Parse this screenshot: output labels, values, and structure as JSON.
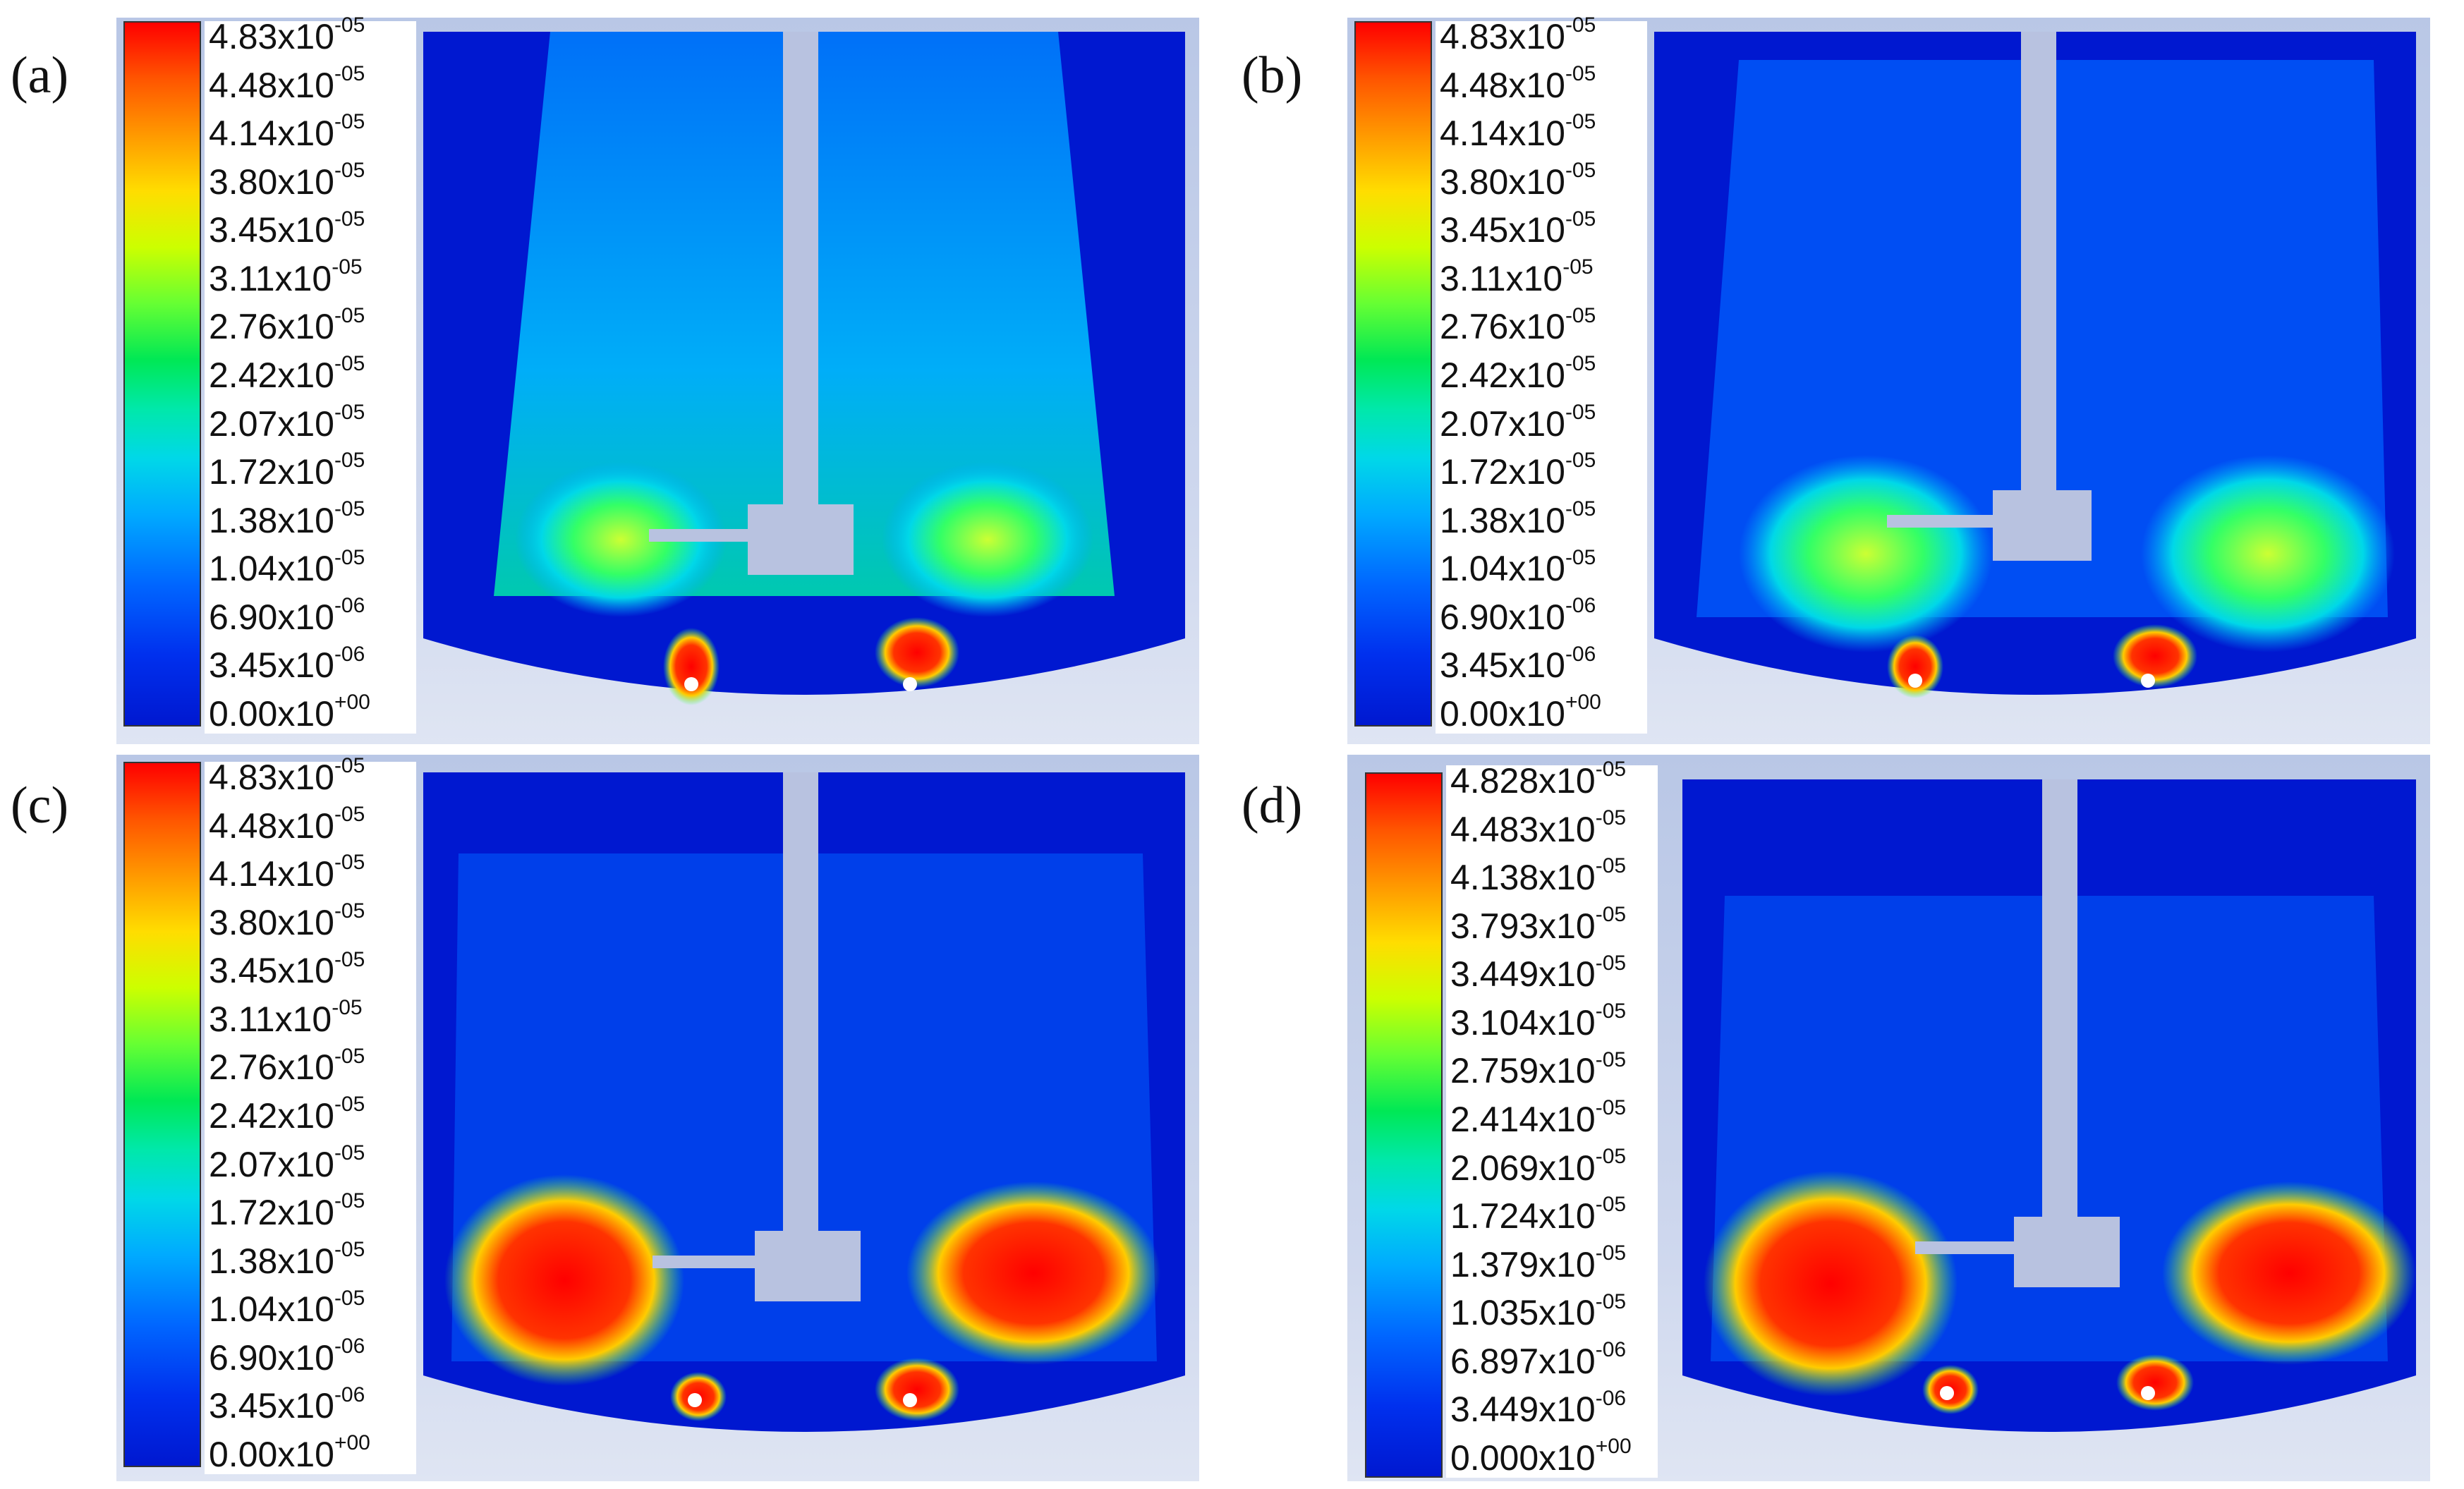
{
  "panels": [
    {
      "label": "(a)",
      "ticks": [
        [
          "4.83x10",
          "-05"
        ],
        [
          "4.48x10",
          "-05"
        ],
        [
          "4.14x10",
          "-05"
        ],
        [
          "3.80x10",
          "-05"
        ],
        [
          "3.45x10",
          "-05"
        ],
        [
          "3.11x10",
          "-05"
        ],
        [
          "2.76x10",
          "-05"
        ],
        [
          "2.42x10",
          "-05"
        ],
        [
          "2.07x10",
          "-05"
        ],
        [
          "1.72x10",
          "-05"
        ],
        [
          "1.38x10",
          "-05"
        ],
        [
          "1.04x10",
          "-05"
        ],
        [
          "6.90x10",
          "-06"
        ],
        [
          "3.45x10",
          "-06"
        ],
        [
          "0.00x10",
          "+00"
        ]
      ]
    },
    {
      "label": "(b)",
      "ticks": [
        [
          "4.83x10",
          "-05"
        ],
        [
          "4.48x10",
          "-05"
        ],
        [
          "4.14x10",
          "-05"
        ],
        [
          "3.80x10",
          "-05"
        ],
        [
          "3.45x10",
          "-05"
        ],
        [
          "3.11x10",
          "-05"
        ],
        [
          "2.76x10",
          "-05"
        ],
        [
          "2.42x10",
          "-05"
        ],
        [
          "2.07x10",
          "-05"
        ],
        [
          "1.72x10",
          "-05"
        ],
        [
          "1.38x10",
          "-05"
        ],
        [
          "1.04x10",
          "-05"
        ],
        [
          "6.90x10",
          "-06"
        ],
        [
          "3.45x10",
          "-06"
        ],
        [
          "0.00x10",
          "+00"
        ]
      ]
    },
    {
      "label": "(c)",
      "ticks": [
        [
          "4.83x10",
          "-05"
        ],
        [
          "4.48x10",
          "-05"
        ],
        [
          "4.14x10",
          "-05"
        ],
        [
          "3.80x10",
          "-05"
        ],
        [
          "3.45x10",
          "-05"
        ],
        [
          "3.11x10",
          "-05"
        ],
        [
          "2.76x10",
          "-05"
        ],
        [
          "2.42x10",
          "-05"
        ],
        [
          "2.07x10",
          "-05"
        ],
        [
          "1.72x10",
          "-05"
        ],
        [
          "1.38x10",
          "-05"
        ],
        [
          "1.04x10",
          "-05"
        ],
        [
          "6.90x10",
          "-06"
        ],
        [
          "3.45x10",
          "-06"
        ],
        [
          "0.00x10",
          "+00"
        ]
      ]
    },
    {
      "label": "(d)",
      "ticks": [
        [
          "4.828x10",
          "-05"
        ],
        [
          "4.483x10",
          "-05"
        ],
        [
          "4.138x10",
          "-05"
        ],
        [
          "3.793x10",
          "-05"
        ],
        [
          "3.449x10",
          "-05"
        ],
        [
          "3.104x10",
          "-05"
        ],
        [
          "2.759x10",
          "-05"
        ],
        [
          "2.414x10",
          "-05"
        ],
        [
          "2.069x10",
          "-05"
        ],
        [
          "1.724x10",
          "-05"
        ],
        [
          "1.379x10",
          "-05"
        ],
        [
          "1.035x10",
          "-05"
        ],
        [
          "6.897x10",
          "-06"
        ],
        [
          "3.449x10",
          "-06"
        ],
        [
          "0.000x10",
          "+00"
        ]
      ]
    }
  ],
  "colors": {
    "high": "#ff0000",
    "mid": "#33ff33",
    "low": "#0030ee",
    "shaft": "#b8c2e0"
  }
}
